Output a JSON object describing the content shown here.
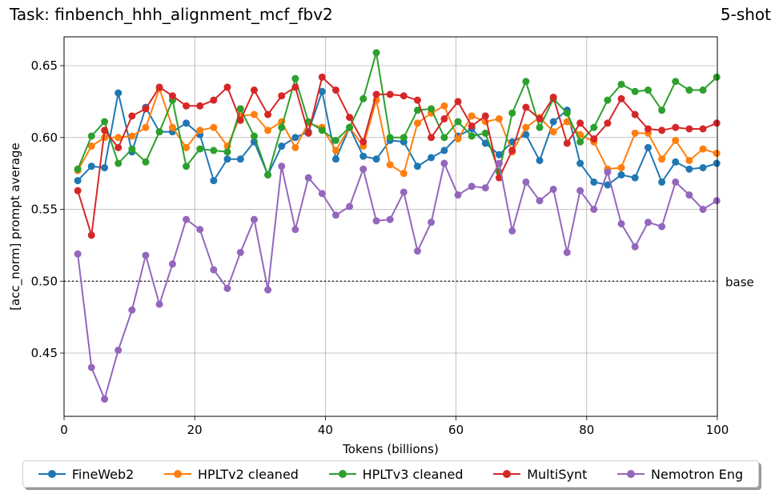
{
  "header": {
    "title": "Task: finbench_hhh_alignment_mcf_fbv2",
    "shot": "5-shot"
  },
  "chart_data": {
    "type": "line",
    "title": "Task: finbench_hhh_alignment_mcf_fbv2",
    "subtitle": "5-shot",
    "xlabel": "Tokens (billions)",
    "ylabel": "[acc_norm] prompt average",
    "xlim": [
      0,
      100
    ],
    "ylim": [
      0.405,
      0.672
    ],
    "xticks": [
      0,
      20,
      40,
      60,
      80,
      100
    ],
    "yticks": [
      0.45,
      0.5,
      0.55,
      0.6,
      0.65
    ],
    "grid": true,
    "legend_position": "bottom",
    "reference_line": {
      "y": 0.5,
      "label": "base",
      "style": "dotted"
    },
    "x": [
      2.1,
      4.2,
      6.2,
      8.3,
      10.4,
      12.5,
      14.6,
      16.6,
      18.7,
      20.8,
      22.9,
      25.0,
      27.0,
      29.1,
      31.2,
      33.3,
      35.4,
      37.4,
      39.5,
      41.6,
      43.7,
      45.8,
      47.8,
      49.9,
      52.0,
      54.1,
      56.2,
      58.2,
      60.3,
      62.4,
      64.5,
      66.6,
      68.6,
      70.7,
      72.8,
      74.9,
      77.0,
      79.0,
      81.1,
      83.2,
      85.3,
      87.4,
      89.4,
      91.5,
      93.6,
      95.7,
      97.8,
      99.9
    ],
    "series": [
      {
        "name": "FineWeb2",
        "color": "#1f77b4",
        "values": [
          0.57,
          0.58,
          0.579,
          0.631,
          0.59,
          0.621,
          0.604,
          0.604,
          0.61,
          0.602,
          0.57,
          0.585,
          0.585,
          0.597,
          0.574,
          0.594,
          0.6,
          0.604,
          0.632,
          0.585,
          0.607,
          0.587,
          0.585,
          0.598,
          0.597,
          0.58,
          0.586,
          0.591,
          0.601,
          0.606,
          0.596,
          0.588,
          0.597,
          0.602,
          0.584,
          0.611,
          0.619,
          0.582,
          0.569,
          0.567,
          0.574,
          0.572,
          0.593,
          0.569,
          0.583,
          0.578,
          0.579,
          0.582
        ]
      },
      {
        "name": "HPLTv2 cleaned",
        "color": "#ff7f0e",
        "values": [
          0.577,
          0.594,
          0.6,
          0.6,
          0.601,
          0.607,
          0.634,
          0.607,
          0.593,
          0.605,
          0.607,
          0.594,
          0.615,
          0.616,
          0.605,
          0.611,
          0.593,
          0.61,
          0.607,
          0.591,
          0.607,
          0.594,
          0.626,
          0.581,
          0.575,
          0.61,
          0.617,
          0.622,
          0.599,
          0.615,
          0.611,
          0.613,
          0.59,
          0.607,
          0.614,
          0.604,
          0.611,
          0.602,
          0.597,
          0.578,
          0.579,
          0.603,
          0.603,
          0.585,
          0.598,
          0.584,
          0.592,
          0.589
        ]
      },
      {
        "name": "HPLTv3 cleaned",
        "color": "#2ca02c",
        "values": [
          0.578,
          0.601,
          0.611,
          0.582,
          0.592,
          0.583,
          0.604,
          0.626,
          0.58,
          0.592,
          0.591,
          0.59,
          0.62,
          0.601,
          0.574,
          0.607,
          0.641,
          0.611,
          0.605,
          0.598,
          0.607,
          0.627,
          0.659,
          0.6,
          0.6,
          0.619,
          0.62,
          0.6,
          0.611,
          0.601,
          0.603,
          0.576,
          0.617,
          0.639,
          0.607,
          0.627,
          0.617,
          0.597,
          0.607,
          0.626,
          0.637,
          0.632,
          0.633,
          0.619,
          0.639,
          0.633,
          0.633,
          0.642
        ]
      },
      {
        "name": "MultiSynt",
        "color": "#d62728",
        "values": [
          0.563,
          0.532,
          0.605,
          0.593,
          0.615,
          0.62,
          0.635,
          0.629,
          0.622,
          0.622,
          0.626,
          0.635,
          0.612,
          0.633,
          0.616,
          0.629,
          0.635,
          0.603,
          0.642,
          0.633,
          0.614,
          0.597,
          0.63,
          0.63,
          0.629,
          0.626,
          0.6,
          0.613,
          0.625,
          0.608,
          0.615,
          0.572,
          0.591,
          0.621,
          0.613,
          0.628,
          0.596,
          0.61,
          0.599,
          0.61,
          0.627,
          0.616,
          0.606,
          0.605,
          0.607,
          0.606,
          0.606,
          0.61
        ]
      },
      {
        "name": "Nemotron Eng",
        "color": "#9467bd",
        "values": [
          0.519,
          0.44,
          0.418,
          0.452,
          0.48,
          0.518,
          0.484,
          0.512,
          0.543,
          0.536,
          0.508,
          0.495,
          0.52,
          0.543,
          0.494,
          0.58,
          0.536,
          0.572,
          0.561,
          0.546,
          0.552,
          0.578,
          0.542,
          0.543,
          0.562,
          0.521,
          0.541,
          0.582,
          0.56,
          0.566,
          0.565,
          0.582,
          0.535,
          0.569,
          0.556,
          0.564,
          0.52,
          0.563,
          0.55,
          0.576,
          0.54,
          0.524,
          0.541,
          0.538,
          0.569,
          0.56,
          0.55,
          0.556
        ]
      }
    ]
  },
  "legend": {
    "items": [
      {
        "label": "FineWeb2",
        "color": "#1f77b4"
      },
      {
        "label": "HPLTv2 cleaned",
        "color": "#ff7f0e"
      },
      {
        "label": "HPLTv3 cleaned",
        "color": "#2ca02c"
      },
      {
        "label": "MultiSynt",
        "color": "#d62728"
      },
      {
        "label": "Nemotron Eng",
        "color": "#9467bd"
      }
    ]
  }
}
